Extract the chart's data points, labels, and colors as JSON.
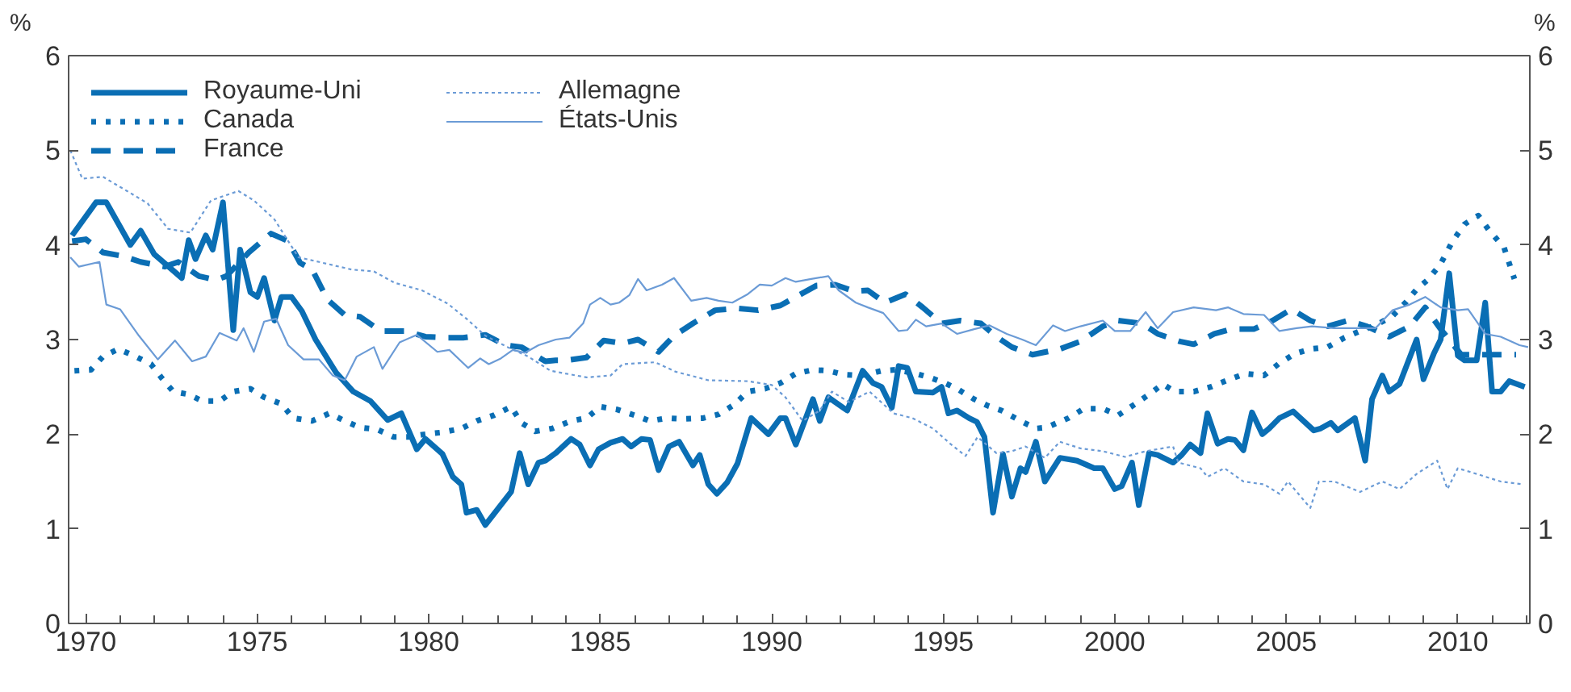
{
  "chart_data": {
    "type": "line",
    "ylabel": "%",
    "y2label": "%",
    "xlim": [
      1969.5,
      2012.1
    ],
    "ylim": [
      0,
      6
    ],
    "y2lim": [
      0,
      6
    ],
    "xticks": [
      1970,
      {
        "value": 1971,
        "label": null
      },
      {
        "value": 1972,
        "label": null
      },
      {
        "value": 1973,
        "label": null
      },
      {
        "value": 1974,
        "label": null
      },
      1975,
      {
        "value": 1976,
        "label": null
      },
      {
        "value": 1977,
        "label": null
      },
      {
        "value": 1978,
        "label": null
      },
      {
        "value": 1979,
        "label": null
      },
      1980,
      {
        "value": 1981,
        "label": null
      },
      {
        "value": 1982,
        "label": null
      },
      {
        "value": 1983,
        "label": null
      },
      {
        "value": 1984,
        "label": null
      },
      1985,
      {
        "value": 1986,
        "label": null
      },
      {
        "value": 1987,
        "label": null
      },
      {
        "value": 1988,
        "label": null
      },
      {
        "value": 1989,
        "label": null
      },
      1990,
      {
        "value": 1991,
        "label": null
      },
      {
        "value": 1992,
        "label": null
      },
      {
        "value": 1993,
        "label": null
      },
      {
        "value": 1994,
        "label": null
      },
      1995,
      {
        "value": 1996,
        "label": null
      },
      {
        "value": 1997,
        "label": null
      },
      {
        "value": 1998,
        "label": null
      },
      {
        "value": 1999,
        "label": null
      },
      2000,
      {
        "value": 2001,
        "label": null
      },
      {
        "value": 2002,
        "label": null
      },
      {
        "value": 2003,
        "label": null
      },
      {
        "value": 2004,
        "label": null
      },
      2005,
      {
        "value": 2006,
        "label": null
      },
      {
        "value": 2007,
        "label": null
      },
      {
        "value": 2008,
        "label": null
      },
      {
        "value": 2009,
        "label": null
      },
      2010,
      {
        "value": 2011,
        "label": null
      },
      {
        "value": 2012,
        "label": null
      }
    ],
    "yticks": [
      0,
      1,
      2,
      3,
      4,
      5,
      6
    ],
    "y2ticks": [
      0,
      1,
      2,
      3,
      4,
      5,
      6
    ],
    "grid": false,
    "legend": "top left",
    "series": [
      {
        "name": "Royaume-Uni",
        "color": "#0a6eb4",
        "line_style": "solid",
        "x": [
          1969.6,
          1970.3,
          1970.6,
          1971.3,
          1971.6,
          1972.0,
          1972.8,
          1973.0,
          1973.2,
          1973.5,
          1973.7,
          1974.0,
          1974.3,
          1974.5,
          1974.8,
          1975.0,
          1975.2,
          1975.5,
          1975.7,
          1976.0,
          1976.3,
          1976.7,
          1977.3,
          1977.8,
          1978.3,
          1978.8,
          1979.2,
          1979.65,
          1979.9,
          1980.4,
          1980.7,
          1980.95,
          1981.1,
          1981.4,
          1981.65,
          1982.4,
          1982.65,
          1982.9,
          1983.2,
          1983.4,
          1983.7,
          1984.15,
          1984.4,
          1984.7,
          1984.95,
          1985.3,
          1985.65,
          1985.9,
          1986.2,
          1986.45,
          1986.7,
          1987.0,
          1987.3,
          1987.7,
          1987.9,
          1988.15,
          1988.4,
          1988.7,
          1989.0,
          1989.4,
          1989.9,
          1990.25,
          1990.4,
          1990.7,
          1991.2,
          1991.4,
          1991.65,
          1992.2,
          1992.65,
          1992.95,
          1993.2,
          1993.5,
          1993.7,
          1993.95,
          1994.2,
          1994.7,
          1994.95,
          1995.15,
          1995.4,
          1995.75,
          1995.98,
          1996.2,
          1996.45,
          1996.74,
          1997.0,
          1997.25,
          1997.4,
          1997.7,
          1997.96,
          1998.4,
          1998.9,
          1999.4,
          1999.65,
          2000.0,
          2000.2,
          2000.5,
          2000.7,
          2001.0,
          2001.25,
          2001.7,
          2001.95,
          2002.2,
          2002.5,
          2002.7,
          2003.0,
          2003.3,
          2003.5,
          2003.75,
          2004.0,
          2004.3,
          2004.5,
          2004.8,
          2005.2,
          2005.5,
          2005.8,
          2006.0,
          2006.3,
          2006.5,
          2007.0,
          2007.3,
          2007.5,
          2007.8,
          2008.0,
          2008.3,
          2008.8,
          2009.0,
          2009.3,
          2009.5,
          2009.75,
          2010.0,
          2010.2,
          2010.55,
          2010.8,
          2011.0,
          2011.25,
          2011.5,
          2011.95
        ],
        "values": [
          4.1,
          4.45,
          4.45,
          4.0,
          4.15,
          3.9,
          3.65,
          4.05,
          3.85,
          4.1,
          3.95,
          4.45,
          3.1,
          3.95,
          3.5,
          3.45,
          3.65,
          3.2,
          3.45,
          3.45,
          3.3,
          3.0,
          2.65,
          2.45,
          2.35,
          2.15,
          2.22,
          1.84,
          1.95,
          1.79,
          1.55,
          1.47,
          1.17,
          1.2,
          1.04,
          1.39,
          1.8,
          1.47,
          1.7,
          1.72,
          1.8,
          1.95,
          1.89,
          1.67,
          1.84,
          1.91,
          1.95,
          1.87,
          1.95,
          1.94,
          1.62,
          1.87,
          1.92,
          1.67,
          1.78,
          1.47,
          1.37,
          1.49,
          1.69,
          2.17,
          2.0,
          2.17,
          2.17,
          1.89,
          2.37,
          2.14,
          2.39,
          2.25,
          2.67,
          2.54,
          2.5,
          2.28,
          2.72,
          2.7,
          2.45,
          2.44,
          2.5,
          2.22,
          2.25,
          2.17,
          2.13,
          1.97,
          1.17,
          1.79,
          1.34,
          1.64,
          1.6,
          1.92,
          1.5,
          1.75,
          1.72,
          1.64,
          1.64,
          1.42,
          1.45,
          1.7,
          1.25,
          1.8,
          1.78,
          1.7,
          1.78,
          1.89,
          1.8,
          2.22,
          1.9,
          1.95,
          1.94,
          1.83,
          2.23,
          2.0,
          2.06,
          2.17,
          2.24,
          2.14,
          2.04,
          2.06,
          2.12,
          2.04,
          2.17,
          1.72,
          2.37,
          2.62,
          2.45,
          2.53,
          3.0,
          2.58,
          2.85,
          3.0,
          3.7,
          2.83,
          2.78,
          2.78,
          3.39,
          2.45,
          2.45,
          2.56,
          2.5
        ]
      },
      {
        "name": "Canada",
        "color": "#0a6eb4",
        "line_style": "dotted",
        "x": [
          1969.67,
          1970.15,
          1970.5,
          1970.95,
          1971.4,
          1971.9,
          1972.2,
          1972.55,
          1973.0,
          1973.4,
          1973.9,
          1974.3,
          1974.8,
          1975.2,
          1975.7,
          1976.05,
          1976.6,
          1977.1,
          1977.55,
          1978.0,
          1978.5,
          1978.98,
          1979.4,
          1979.9,
          1980.4,
          1980.95,
          1981.4,
          1981.9,
          1982.4,
          1982.7,
          1983.1,
          1983.6,
          1984.15,
          1984.6,
          1985.0,
          1985.5,
          1986.0,
          1986.45,
          1986.95,
          1987.4,
          1988.0,
          1988.45,
          1988.9,
          1989.3,
          1989.8,
          1990.25,
          1990.7,
          1991.2,
          1991.65,
          1992.1,
          1992.6,
          1993.2,
          1993.6,
          1994.1,
          1994.6,
          1995.05,
          1995.4,
          1995.9,
          1996.3,
          1996.7,
          1997.25,
          1997.7,
          1998.0,
          1998.65,
          1999.1,
          1999.65,
          2000.1,
          2000.6,
          2001.0,
          2001.4,
          2001.75,
          2002.3,
          2002.8,
          2003.35,
          2003.8,
          2004.35,
          2004.8,
          2005.25,
          2005.7,
          2006.2,
          2006.7,
          2007.15,
          2007.6,
          2008.1,
          2008.5,
          2008.8,
          2009.15,
          2009.5,
          2009.85,
          2010.2,
          2010.6,
          2010.9,
          2011.35,
          2011.65
        ],
        "values": [
          2.67,
          2.68,
          2.82,
          2.9,
          2.83,
          2.74,
          2.6,
          2.45,
          2.42,
          2.35,
          2.35,
          2.45,
          2.48,
          2.39,
          2.32,
          2.17,
          2.14,
          2.22,
          2.14,
          2.07,
          2.05,
          1.97,
          1.97,
          2.0,
          2.02,
          2.06,
          2.14,
          2.2,
          2.29,
          2.12,
          2.03,
          2.06,
          2.14,
          2.17,
          2.29,
          2.26,
          2.2,
          2.14,
          2.17,
          2.16,
          2.17,
          2.21,
          2.31,
          2.45,
          2.48,
          2.54,
          2.64,
          2.68,
          2.67,
          2.63,
          2.62,
          2.67,
          2.68,
          2.65,
          2.6,
          2.54,
          2.48,
          2.37,
          2.3,
          2.25,
          2.14,
          2.06,
          2.07,
          2.17,
          2.27,
          2.27,
          2.2,
          2.32,
          2.42,
          2.53,
          2.45,
          2.45,
          2.5,
          2.58,
          2.64,
          2.62,
          2.75,
          2.85,
          2.9,
          2.92,
          3.02,
          3.09,
          3.15,
          3.25,
          3.4,
          3.53,
          3.64,
          3.8,
          4.04,
          4.22,
          4.31,
          4.16,
          3.97,
          3.64
        ]
      },
      {
        "name": "France",
        "color": "#0a6eb4",
        "line_style": "dashed",
        "x": [
          1969.6,
          1970.0,
          1970.5,
          1971.1,
          1971.6,
          1972.3,
          1972.7,
          1973.3,
          1973.8,
          1974.1,
          1974.75,
          1975.4,
          1975.9,
          1976.25,
          1976.6,
          1977.05,
          1977.55,
          1978.0,
          1978.6,
          1979.3,
          1979.9,
          1980.55,
          1981.0,
          1981.65,
          1982.25,
          1982.7,
          1983.4,
          1983.7,
          1984.0,
          1984.6,
          1985.1,
          1985.65,
          1986.1,
          1986.7,
          1987.15,
          1987.7,
          1988.35,
          1989.0,
          1989.6,
          1990.25,
          1990.7,
          1991.3,
          1991.85,
          1992.4,
          1992.8,
          1993.3,
          1993.9,
          1994.4,
          1994.95,
          1995.5,
          1996.1,
          1996.55,
          1997.0,
          1997.6,
          1998.4,
          1999.0,
          1999.65,
          2000.1,
          2000.8,
          2001.25,
          2001.9,
          2002.3,
          2002.9,
          2003.4,
          2004.05,
          2004.6,
          2005.15,
          2005.7,
          2006.2,
          2006.8,
          2007.35,
          2008.0,
          2008.6,
          2009.05,
          2009.5,
          2010.1,
          2010.65,
          2011.2,
          2011.7
        ],
        "values": [
          4.04,
          4.06,
          3.92,
          3.88,
          3.82,
          3.77,
          3.82,
          3.67,
          3.63,
          3.67,
          3.92,
          4.12,
          4.04,
          3.81,
          3.74,
          3.42,
          3.26,
          3.24,
          3.09,
          3.09,
          3.03,
          3.02,
          3.02,
          3.05,
          2.94,
          2.92,
          2.77,
          2.78,
          2.78,
          2.81,
          2.99,
          2.96,
          3.0,
          2.87,
          3.04,
          3.17,
          3.31,
          3.33,
          3.31,
          3.36,
          3.45,
          3.57,
          3.58,
          3.51,
          3.52,
          3.39,
          3.48,
          3.34,
          3.17,
          3.2,
          3.17,
          3.03,
          2.92,
          2.84,
          2.9,
          2.98,
          3.14,
          3.2,
          3.17,
          3.06,
          2.98,
          2.95,
          3.06,
          3.11,
          3.11,
          3.2,
          3.32,
          3.2,
          3.14,
          3.2,
          3.14,
          3.03,
          3.14,
          3.34,
          3.11,
          2.84,
          2.84,
          2.84,
          2.84
        ]
      },
      {
        "name": "Allemagne",
        "color": "#6b9bd6",
        "line_style": "dotted",
        "x": [
          1969.55,
          1969.9,
          1970.5,
          1971.2,
          1971.8,
          1972.4,
          1973.05,
          1973.65,
          1974.45,
          1974.9,
          1975.5,
          1976.2,
          1976.8,
          1977.75,
          1978.4,
          1979.0,
          1979.8,
          1980.55,
          1981.1,
          1981.65,
          1982.3,
          1982.9,
          1983.55,
          1984.6,
          1985.3,
          1985.65,
          1986.6,
          1987.2,
          1988.15,
          1989.3,
          1990.0,
          1990.4,
          1990.9,
          1991.4,
          1991.75,
          1992.25,
          1992.85,
          1993.55,
          1994.1,
          1994.7,
          1995.2,
          1995.65,
          1996.0,
          1996.55,
          1997.0,
          1997.4,
          1997.96,
          1998.4,
          1999.0,
          1999.65,
          2000.3,
          2000.9,
          2001.7,
          2001.85,
          2002.5,
          2002.7,
          2003.2,
          2003.75,
          2004.35,
          2004.8,
          2005.05,
          2005.7,
          2005.95,
          2006.4,
          2007.15,
          2007.8,
          2008.3,
          2008.8,
          2009.4,
          2009.7,
          2010.0,
          2010.55,
          2011.25,
          2011.9
        ],
        "values": [
          5.0,
          4.7,
          4.72,
          4.57,
          4.44,
          4.17,
          4.13,
          4.47,
          4.57,
          4.47,
          4.27,
          3.87,
          3.82,
          3.74,
          3.72,
          3.6,
          3.52,
          3.38,
          3.22,
          3.04,
          2.92,
          2.82,
          2.67,
          2.6,
          2.62,
          2.74,
          2.76,
          2.66,
          2.57,
          2.56,
          2.52,
          2.39,
          2.14,
          2.25,
          2.45,
          2.34,
          2.45,
          2.22,
          2.17,
          2.06,
          1.9,
          1.77,
          1.97,
          1.8,
          1.82,
          1.87,
          1.75,
          1.92,
          1.85,
          1.82,
          1.76,
          1.82,
          1.87,
          1.7,
          1.64,
          1.55,
          1.64,
          1.5,
          1.47,
          1.37,
          1.5,
          1.22,
          1.5,
          1.5,
          1.39,
          1.5,
          1.42,
          1.58,
          1.72,
          1.42,
          1.64,
          1.58,
          1.5,
          1.47
        ]
      },
      {
        "name": "États-Unis",
        "color": "#6b9bd6",
        "line_style": "solid",
        "x": [
          1969.55,
          1969.8,
          1970.4,
          1970.6,
          1971.0,
          1971.55,
          1972.1,
          1972.6,
          1973.1,
          1973.5,
          1973.9,
          1974.4,
          1974.6,
          1974.9,
          1975.2,
          1975.55,
          1975.9,
          1976.35,
          1976.8,
          1977.2,
          1977.55,
          1977.9,
          1978.4,
          1978.65,
          1979.15,
          1979.65,
          1980.25,
          1980.6,
          1981.15,
          1981.5,
          1981.75,
          1982.1,
          1982.45,
          1982.8,
          1983.2,
          1983.7,
          1984.1,
          1984.5,
          1984.7,
          1985.0,
          1985.3,
          1985.55,
          1985.85,
          1986.1,
          1986.35,
          1986.8,
          1987.15,
          1987.65,
          1988.1,
          1988.45,
          1988.85,
          1989.3,
          1989.65,
          1990.0,
          1990.4,
          1990.7,
          1991.15,
          1991.65,
          1991.95,
          1992.45,
          1992.8,
          1993.25,
          1993.7,
          1993.95,
          1994.2,
          1994.5,
          1994.95,
          1995.4,
          1995.9,
          1996.35,
          1996.85,
          1997.3,
          1997.7,
          1998.2,
          1998.55,
          1999.0,
          1999.65,
          2000.0,
          2000.45,
          2000.9,
          2001.25,
          2001.7,
          2002.3,
          2002.95,
          2003.3,
          2003.75,
          2004.35,
          2004.8,
          2005.3,
          2005.75,
          2006.4,
          2007.0,
          2007.6,
          2008.1,
          2008.6,
          2009.05,
          2009.5,
          2010.0,
          2010.3,
          2010.8,
          2011.25,
          2011.8,
          2012.05
        ],
        "values": [
          3.87,
          3.77,
          3.82,
          3.37,
          3.32,
          3.04,
          2.79,
          2.99,
          2.77,
          2.82,
          3.07,
          2.99,
          3.12,
          2.87,
          3.19,
          3.22,
          2.94,
          2.79,
          2.79,
          2.62,
          2.57,
          2.82,
          2.92,
          2.69,
          2.97,
          3.05,
          2.87,
          2.89,
          2.7,
          2.8,
          2.74,
          2.8,
          2.89,
          2.86,
          2.94,
          3.0,
          3.02,
          3.17,
          3.37,
          3.44,
          3.37,
          3.39,
          3.47,
          3.64,
          3.52,
          3.58,
          3.65,
          3.41,
          3.44,
          3.41,
          3.39,
          3.48,
          3.58,
          3.57,
          3.65,
          3.61,
          3.64,
          3.67,
          3.52,
          3.39,
          3.34,
          3.28,
          3.09,
          3.1,
          3.21,
          3.14,
          3.17,
          3.06,
          3.11,
          3.15,
          3.06,
          3.0,
          2.94,
          3.15,
          3.09,
          3.14,
          3.2,
          3.09,
          3.09,
          3.29,
          3.12,
          3.29,
          3.34,
          3.31,
          3.34,
          3.27,
          3.26,
          3.09,
          3.12,
          3.14,
          3.12,
          3.12,
          3.12,
          3.31,
          3.37,
          3.45,
          3.34,
          3.31,
          3.32,
          3.06,
          3.03,
          2.94,
          2.92
        ]
      }
    ]
  }
}
